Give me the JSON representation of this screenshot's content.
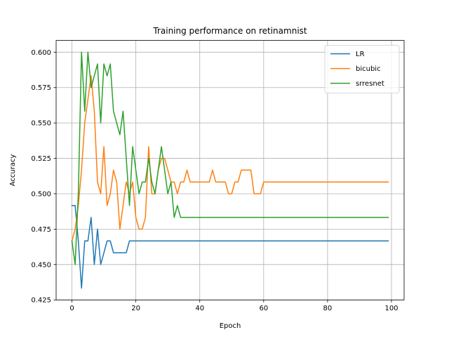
{
  "chart_data": {
    "type": "line",
    "title": "Training performance on retinamnist",
    "xlabel": "Epoch",
    "ylabel": "Accuracy",
    "xlim": [
      -4.95,
      103.95
    ],
    "ylim": [
      0.425,
      0.6083
    ],
    "xticks": [
      "0",
      "20",
      "40",
      "60",
      "80",
      "100"
    ],
    "xtick_values": [
      0,
      20,
      40,
      60,
      80,
      100
    ],
    "yticks": [
      "0.425",
      "0.450",
      "0.475",
      "0.500",
      "0.525",
      "0.550",
      "0.575",
      "0.600"
    ],
    "ytick_values": [
      0.425,
      0.45,
      0.475,
      0.5,
      0.525,
      0.55,
      0.575,
      0.6
    ],
    "grid": true,
    "legend_position": "top-right",
    "series": [
      {
        "name": "LR",
        "color": "#1f77b4",
        "x": [
          0,
          1,
          2,
          3,
          4,
          5,
          6,
          7,
          8,
          9,
          10,
          11,
          12,
          13,
          14,
          15,
          16,
          17,
          18,
          19,
          20,
          30,
          40,
          50,
          60,
          70,
          80,
          90,
          99
        ],
        "y": [
          0.4917,
          0.4917,
          0.4667,
          0.4333,
          0.4667,
          0.4667,
          0.4833,
          0.45,
          0.475,
          0.45,
          0.4583,
          0.4667,
          0.4667,
          0.4583,
          0.4583,
          0.4583,
          0.4583,
          0.4583,
          0.4667,
          0.4667,
          0.4667,
          0.4667,
          0.4667,
          0.4667,
          0.4667,
          0.4667,
          0.4667,
          0.4667,
          0.4667
        ]
      },
      {
        "name": "bicubic",
        "color": "#ff7f0e",
        "x": [
          0,
          1,
          2,
          3,
          4,
          5,
          6,
          7,
          8,
          9,
          10,
          11,
          12,
          13,
          14,
          15,
          16,
          17,
          18,
          19,
          20,
          21,
          22,
          23,
          24,
          25,
          26,
          27,
          28,
          29,
          30,
          31,
          32,
          33,
          34,
          35,
          36,
          37,
          38,
          39,
          40,
          41,
          42,
          43,
          44,
          45,
          46,
          47,
          48,
          49,
          50,
          51,
          52,
          53,
          54,
          55,
          56,
          57,
          58,
          59,
          60,
          61,
          62,
          70,
          80,
          90,
          99
        ],
        "y": [
          0.4667,
          0.475,
          0.4917,
          0.5167,
          0.55,
          0.5667,
          0.5833,
          0.5583,
          0.5083,
          0.5,
          0.5333,
          0.4917,
          0.5,
          0.5167,
          0.5083,
          0.475,
          0.4917,
          0.5083,
          0.5,
          0.5083,
          0.4833,
          0.475,
          0.475,
          0.4833,
          0.5333,
          0.5,
          0.5,
          0.5167,
          0.525,
          0.525,
          0.5167,
          0.5083,
          0.5083,
          0.5,
          0.5083,
          0.5083,
          0.5167,
          0.5083,
          0.5083,
          0.5083,
          0.5083,
          0.5083,
          0.5083,
          0.5083,
          0.5167,
          0.5083,
          0.5083,
          0.5083,
          0.5083,
          0.5,
          0.5,
          0.5083,
          0.5083,
          0.5167,
          0.5167,
          0.5167,
          0.5167,
          0.5,
          0.5,
          0.5,
          0.5083,
          0.5083,
          0.5083,
          0.5083,
          0.5083,
          0.5083,
          0.5083
        ]
      },
      {
        "name": "srresnet",
        "color": "#2ca02c",
        "x": [
          0,
          1,
          2,
          3,
          4,
          5,
          6,
          7,
          8,
          9,
          10,
          11,
          12,
          13,
          14,
          15,
          16,
          17,
          18,
          19,
          20,
          21,
          22,
          23,
          24,
          25,
          26,
          27,
          28,
          29,
          30,
          31,
          32,
          33,
          34,
          40,
          50,
          60,
          70,
          80,
          90,
          99
        ],
        "y": [
          0.4667,
          0.45,
          0.5,
          0.6,
          0.5583,
          0.6,
          0.575,
          0.5833,
          0.5917,
          0.55,
          0.5917,
          0.5833,
          0.5917,
          0.5583,
          0.55,
          0.5417,
          0.5583,
          0.525,
          0.4917,
          0.5333,
          0.5167,
          0.5,
          0.5083,
          0.5083,
          0.525,
          0.5083,
          0.5,
          0.5167,
          0.5333,
          0.5167,
          0.5,
          0.5083,
          0.4833,
          0.4917,
          0.4833,
          0.4833,
          0.4833,
          0.4833,
          0.4833,
          0.4833,
          0.4833,
          0.4833
        ]
      }
    ]
  }
}
